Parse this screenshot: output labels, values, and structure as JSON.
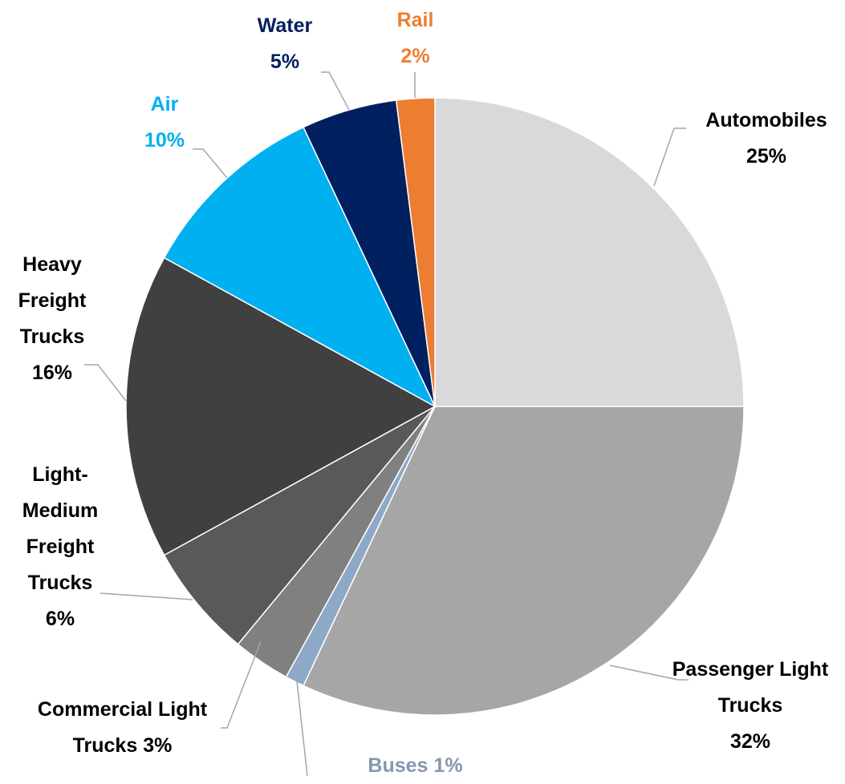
{
  "chart_data": {
    "type": "pie",
    "categories": [
      "Automobiles",
      "Passenger Light Trucks",
      "Buses",
      "Commercial Light Trucks",
      "Light-Medium Freight Trucks",
      "Heavy Freight Trucks",
      "Air",
      "Water",
      "Rail"
    ],
    "values": [
      25,
      32,
      1,
      3,
      6,
      16,
      10,
      5,
      2
    ],
    "value_labels": [
      "25%",
      "32%",
      "1%",
      "3%",
      "6%",
      "16%",
      "10%",
      "5%",
      "2%"
    ],
    "colors": [
      "#d9d9d9",
      "#a6a6a6",
      "#8ea9c8",
      "#808080",
      "#595959",
      "#404040",
      "#00b0f0",
      "#002060",
      "#ed7d31"
    ],
    "label_colors": [
      "#000000",
      "#000000",
      "#8497b0",
      "#000000",
      "#000000",
      "#000000",
      "#00b0f0",
      "#002060",
      "#ed7d31"
    ]
  }
}
